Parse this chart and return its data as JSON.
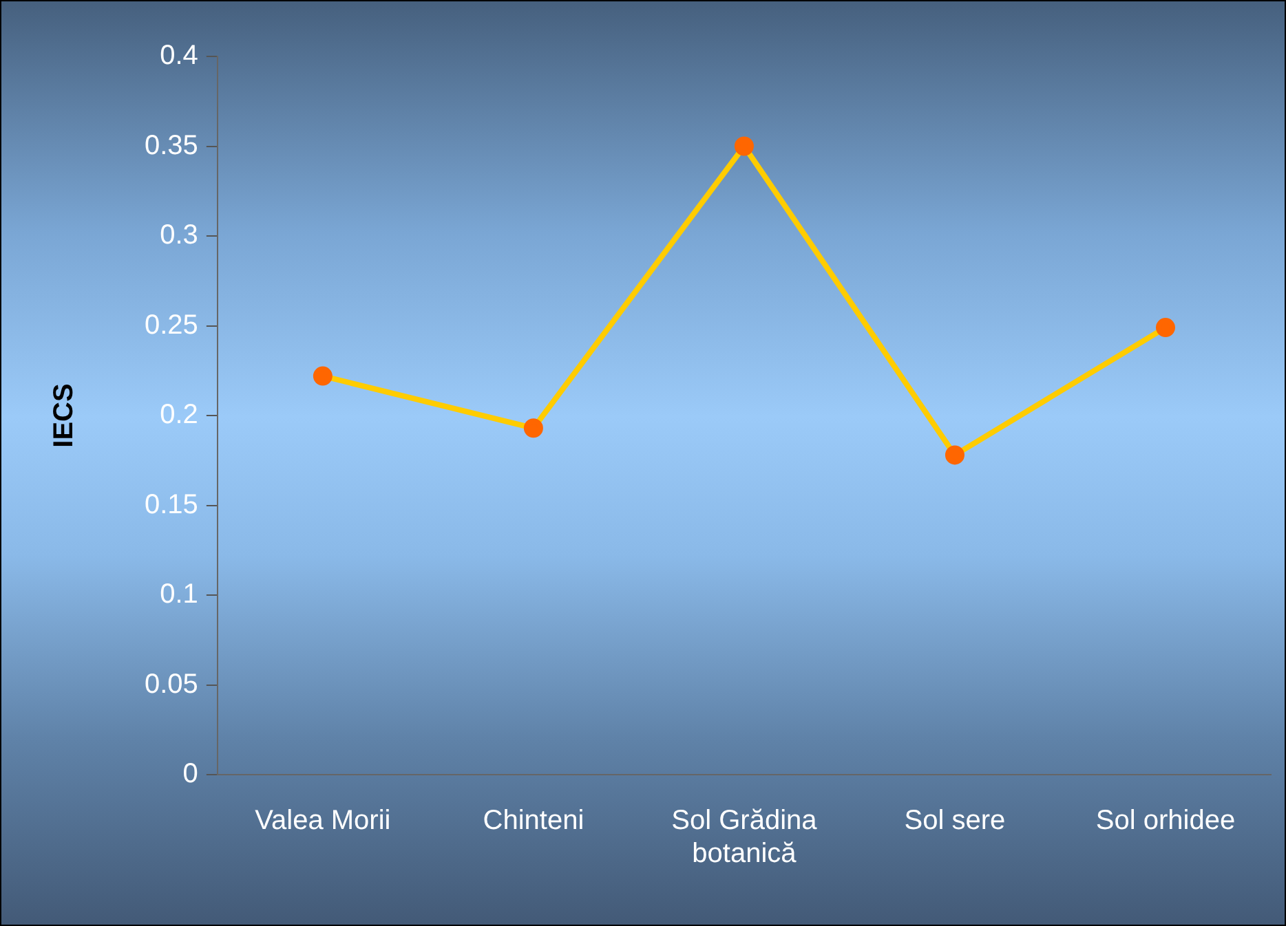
{
  "chart_data": {
    "type": "line",
    "ylabel": "IECS",
    "categories": [
      "Valea Morii",
      "Chinteni",
      "Sol Grădina botanică",
      "Sol sere",
      "Sol orhidee"
    ],
    "series": [
      {
        "color": "#ffcc00",
        "colors": [
          "#ff6600",
          "#ff6600",
          "#ff6600",
          "#ff6600",
          "#ff6600"
        ],
        "values": [
          0.222,
          0.193,
          0.35,
          0.178,
          0.249
        ]
      }
    ],
    "ylim": [
      0,
      0.4
    ],
    "yticks": [
      0,
      0.05,
      0.1,
      0.15,
      0.2,
      0.25,
      0.3,
      0.35,
      0.4
    ],
    "grid": false,
    "legend": false,
    "marker": "circle",
    "line_style": "solid"
  }
}
